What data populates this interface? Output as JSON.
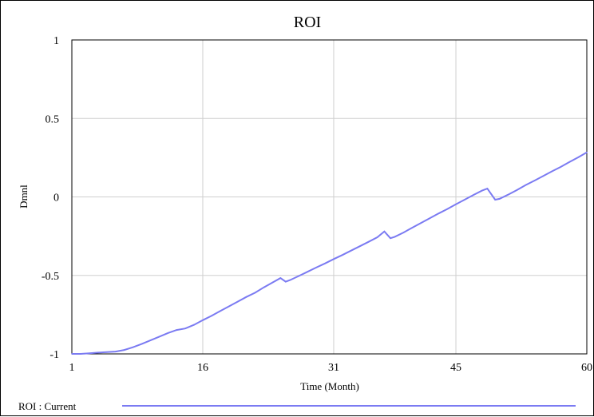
{
  "chart_data": {
    "type": "line",
    "title": "ROI",
    "xlabel": "Time (Month)",
    "ylabel": "Dmnl",
    "xlim": [
      1,
      60
    ],
    "ylim": [
      -1,
      1
    ],
    "x_ticks": [
      1,
      16,
      31,
      45,
      60
    ],
    "x_tick_labels": [
      "1",
      "16",
      "31",
      "45",
      "60"
    ],
    "y_ticks": [
      1,
      0.5,
      0,
      -0.5,
      -1
    ],
    "y_tick_labels": [
      "1",
      "0.5",
      "0",
      "-0.5",
      "-1"
    ],
    "grid": true,
    "legend_position": "bottom-left",
    "series": [
      {
        "name": "ROI : Current",
        "color": "#7b7bf2",
        "x": [
          1,
          2,
          3,
          4,
          5,
          6,
          7,
          8,
          9,
          10,
          11,
          12,
          13,
          14,
          15,
          16,
          17,
          18,
          19,
          20,
          21,
          22,
          23,
          24,
          24.9,
          25.5,
          26,
          27,
          28,
          29,
          30,
          31,
          32,
          33,
          34,
          35,
          36,
          36.8,
          37.5,
          38,
          39,
          40,
          41,
          42,
          43,
          44,
          45,
          46,
          47,
          48,
          48.6,
          49.5,
          50,
          51,
          52,
          53,
          54,
          55,
          56,
          57,
          58,
          59,
          60
        ],
        "y": [
          -1.0,
          -1.0,
          -0.996,
          -0.992,
          -0.989,
          -0.985,
          -0.975,
          -0.958,
          -0.937,
          -0.914,
          -0.891,
          -0.867,
          -0.848,
          -0.838,
          -0.815,
          -0.785,
          -0.758,
          -0.727,
          -0.697,
          -0.667,
          -0.637,
          -0.61,
          -0.576,
          -0.545,
          -0.517,
          -0.54,
          -0.53,
          -0.504,
          -0.477,
          -0.45,
          -0.424,
          -0.396,
          -0.37,
          -0.342,
          -0.314,
          -0.286,
          -0.257,
          -0.22,
          -0.263,
          -0.254,
          -0.227,
          -0.196,
          -0.166,
          -0.136,
          -0.106,
          -0.078,
          -0.047,
          -0.018,
          0.012,
          0.04,
          0.053,
          -0.018,
          -0.012,
          0.015,
          0.044,
          0.076,
          0.104,
          0.133,
          0.163,
          0.191,
          0.222,
          0.252,
          0.284
        ]
      }
    ]
  }
}
